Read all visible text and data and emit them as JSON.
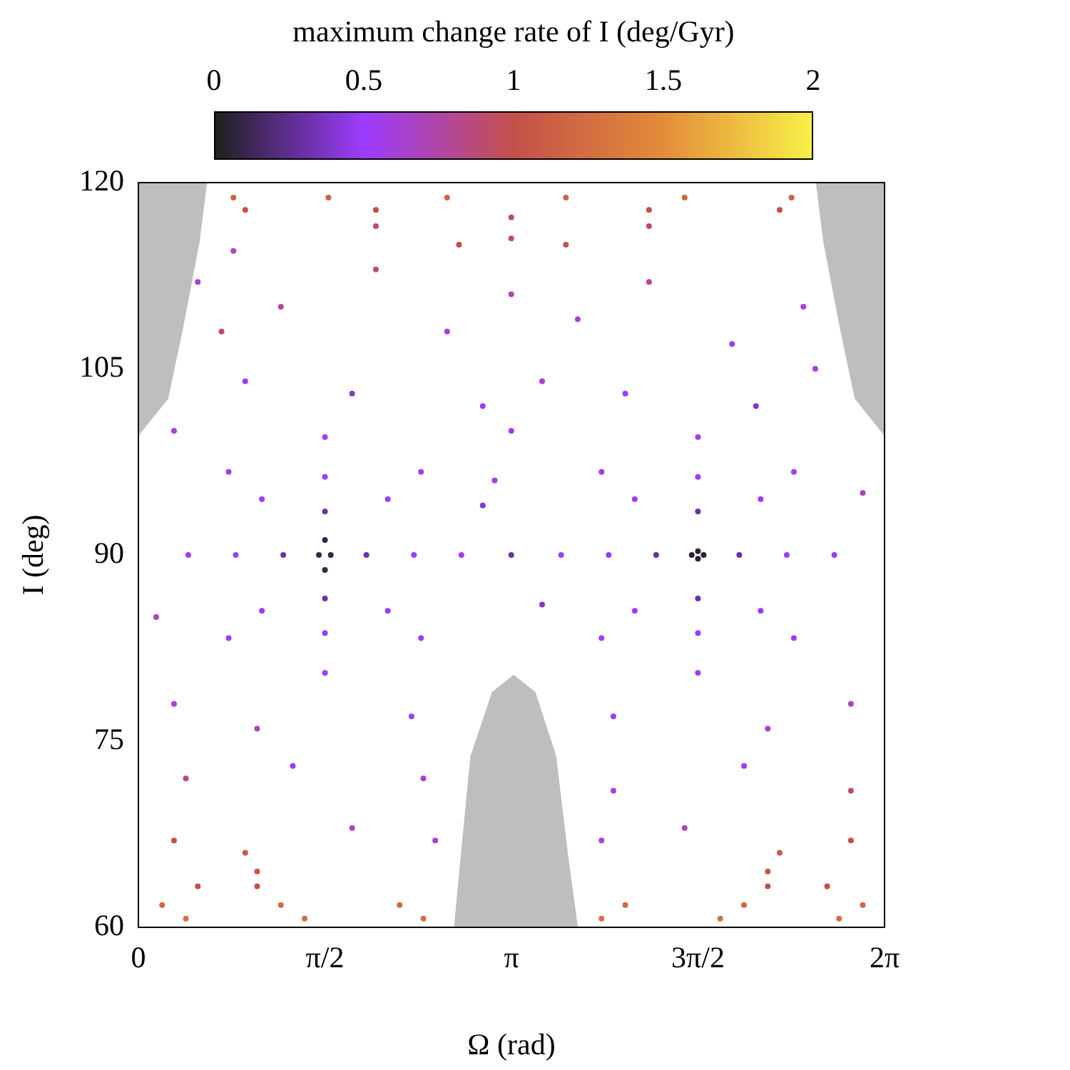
{
  "chart_data": {
    "type": "scatter",
    "clabel": "maximum change rate of I (deg/Gyr)",
    "xlabel": "Ω (rad)",
    "ylabel": "I (deg)",
    "xlim": [
      0,
      6.2832
    ],
    "xticks": [
      0,
      {
        "value": 1.5708,
        "label": "π/2"
      },
      {
        "value": 3.1416,
        "label": "π"
      },
      {
        "value": 4.7124,
        "label": "3π/2"
      },
      {
        "value": 6.2832,
        "label": "2π"
      }
    ],
    "ylim": [
      60,
      120
    ],
    "yticks": [
      60,
      75,
      90,
      105,
      120
    ],
    "clim": [
      0,
      2
    ],
    "cticks": [
      0,
      0.5,
      1,
      1.5,
      2
    ],
    "grid": false,
    "legend": false,
    "marker": "circle",
    "x": [
      2.72,
      2.38,
      1.571,
      0.76,
      0.42,
      0.76,
      1.571,
      2.38,
      2.32,
      2.1,
      1.571,
      1.04,
      0.82,
      1.04,
      1.571,
      2.1,
      1.92,
      1.571,
      1.22,
      1.571,
      1.62,
      1.571,
      1.52,
      1.571,
      3.56,
      3.9,
      4.712,
      5.52,
      5.86,
      5.52,
      4.712,
      3.9,
      3.96,
      4.18,
      4.712,
      5.24,
      5.46,
      5.24,
      4.712,
      4.18,
      5.06,
      4.712,
      4.36,
      4.712,
      4.76,
      4.712,
      4.66,
      4.712,
      0.8,
      1.6,
      2.6,
      3.6,
      4.6,
      5.5,
      0.9,
      2.0,
      4.3,
      5.4,
      2.0,
      3.14,
      4.3,
      3.14,
      0.4,
      1.4,
      2.4,
      3.9,
      4.9,
      5.9,
      0.2,
      1.2,
      2.2,
      4.1,
      5.1,
      6.1,
      0.5,
      1.0,
      5.3,
      5.8,
      0.5,
      1.2,
      2.0,
      2.6,
      3.14,
      3.7,
      4.3,
      5.0,
      5.6,
      0.9,
      1.8,
      2.9,
      3.4,
      4.1,
      5.2,
      0.3,
      2.9,
      3.4,
      3.14,
      0.15,
      6.1,
      0.3,
      1.0,
      2.3,
      3.0,
      4.0,
      5.3,
      6.0,
      0.4,
      1.3,
      2.4,
      4.0,
      5.1,
      6.0,
      0.3,
      0.9,
      1.8,
      2.5,
      3.9,
      4.6,
      5.4,
      6.0,
      1.0,
      5.3,
      3.14,
      2.7,
      3.6,
      0.7,
      5.7,
      0.8
    ],
    "values": [
      90,
      96.7,
      99.5,
      96.7,
      90,
      83.3,
      80.5,
      83.3,
      90,
      94.5,
      96.3,
      94.5,
      90,
      85.5,
      83.7,
      85.5,
      90,
      93.5,
      90,
      86.5,
      90,
      91.2,
      90,
      88.8,
      90,
      96.7,
      99.5,
      96.7,
      90,
      83.3,
      80.5,
      83.3,
      90,
      94.5,
      96.3,
      94.5,
      90,
      85.5,
      83.7,
      85.5,
      90,
      93.5,
      90,
      86.5,
      90,
      90.3,
      90,
      89.7,
      118.8,
      118.8,
      118.8,
      118.8,
      118.8,
      118.8,
      117.8,
      117.8,
      117.8,
      117.8,
      116.5,
      117.2,
      116.5,
      115.5,
      60.7,
      60.7,
      60.7,
      60.7,
      60.7,
      60.7,
      61.8,
      61.8,
      61.8,
      61.8,
      61.8,
      61.8,
      63.3,
      63.3,
      63.3,
      63.3,
      112,
      110,
      113,
      108,
      111,
      109,
      112,
      107,
      110,
      104,
      103,
      102,
      104,
      103,
      102,
      100,
      94,
      86,
      90,
      85,
      95,
      78,
      76,
      77,
      96,
      77,
      76,
      78,
      72,
      73,
      72,
      71,
      73,
      71,
      67,
      66,
      68,
      67,
      67,
      68,
      66,
      67,
      64.5,
      64.5,
      100,
      115,
      115,
      108,
      105,
      114.5
    ],
    "cvalues": [
      0.55,
      0.55,
      0.55,
      0.55,
      0.55,
      0.55,
      0.55,
      0.55,
      0.5,
      0.5,
      0.5,
      0.5,
      0.5,
      0.5,
      0.5,
      0.5,
      0.3,
      0.3,
      0.3,
      0.3,
      0.1,
      0.1,
      0.1,
      0.1,
      0.55,
      0.55,
      0.55,
      0.55,
      0.55,
      0.55,
      0.55,
      0.55,
      0.5,
      0.5,
      0.5,
      0.5,
      0.5,
      0.5,
      0.5,
      0.5,
      0.3,
      0.3,
      0.3,
      0.3,
      0.05,
      0.05,
      0.05,
      0.05,
      1.15,
      1.15,
      1.15,
      1.15,
      1.15,
      1.15,
      1.0,
      1.0,
      1.0,
      1.0,
      0.9,
      0.9,
      0.9,
      0.9,
      1.25,
      1.25,
      1.25,
      1.25,
      1.25,
      1.25,
      1.2,
      1.2,
      1.2,
      1.2,
      1.2,
      1.2,
      1.0,
      1.0,
      1.0,
      1.0,
      0.6,
      0.8,
      0.9,
      0.6,
      0.7,
      0.6,
      0.8,
      0.5,
      0.6,
      0.5,
      0.4,
      0.5,
      0.6,
      0.5,
      0.4,
      0.6,
      0.4,
      0.4,
      0.3,
      0.7,
      0.7,
      0.6,
      0.7,
      0.5,
      0.5,
      0.5,
      0.6,
      0.7,
      0.8,
      0.5,
      0.6,
      0.6,
      0.5,
      0.9,
      1.0,
      1.1,
      0.7,
      0.6,
      0.6,
      0.7,
      1.1,
      1.0,
      1.05,
      1.05,
      0.5,
      1.0,
      1.0,
      0.9,
      0.6,
      0.7
    ]
  }
}
